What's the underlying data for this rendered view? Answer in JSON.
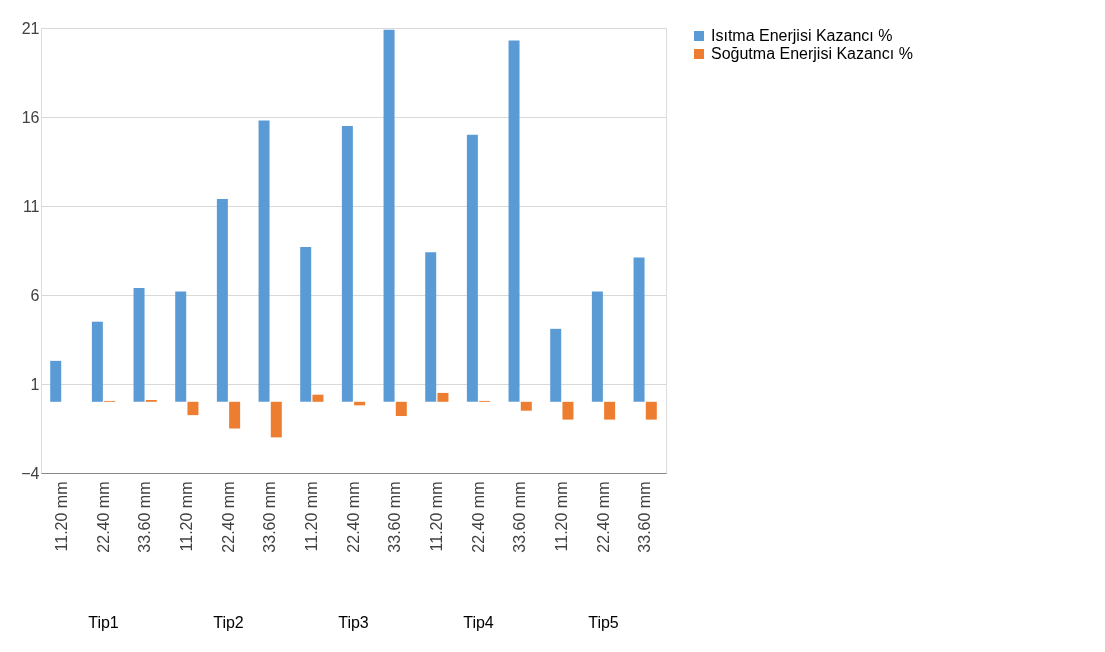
{
  "chart_data": {
    "type": "bar",
    "categories": [
      "11.20 mm",
      "22.40 mm",
      "33.60 mm",
      "11.20 mm",
      "22.40 mm",
      "33.60 mm",
      "11.20 mm",
      "22.40 mm",
      "33.60 mm",
      "11.20 mm",
      "22.40 mm",
      "33.60 mm",
      "11.20 mm",
      "22.40 mm",
      "33.60 mm"
    ],
    "annotations": [
      "Tip1",
      "Tip2",
      "Tip3",
      "Tip4",
      "Tip5"
    ],
    "series": [
      {
        "name": "Isıtma Enerjisi Kazancı %",
        "color": "#5b9bd5",
        "values": [
          2.3,
          4.5,
          6.4,
          6.2,
          11.4,
          15.8,
          8.7,
          15.5,
          20.9,
          8.4,
          15.0,
          20.3,
          4.1,
          6.2,
          8.1
        ]
      },
      {
        "name": "Soğutma Enerjisi Kazancı %",
        "color": "#ed7d31",
        "values": [
          0.0,
          0.05,
          0.1,
          -0.75,
          -1.5,
          -2.0,
          0.4,
          -0.2,
          -0.8,
          0.5,
          0.05,
          -0.5,
          -1.0,
          -1.0,
          -1.0
        ]
      }
    ],
    "ylim": [
      -4,
      21
    ],
    "yticks": [
      -4,
      1,
      6,
      11,
      16,
      21
    ],
    "grid": "y",
    "legend": "right"
  }
}
